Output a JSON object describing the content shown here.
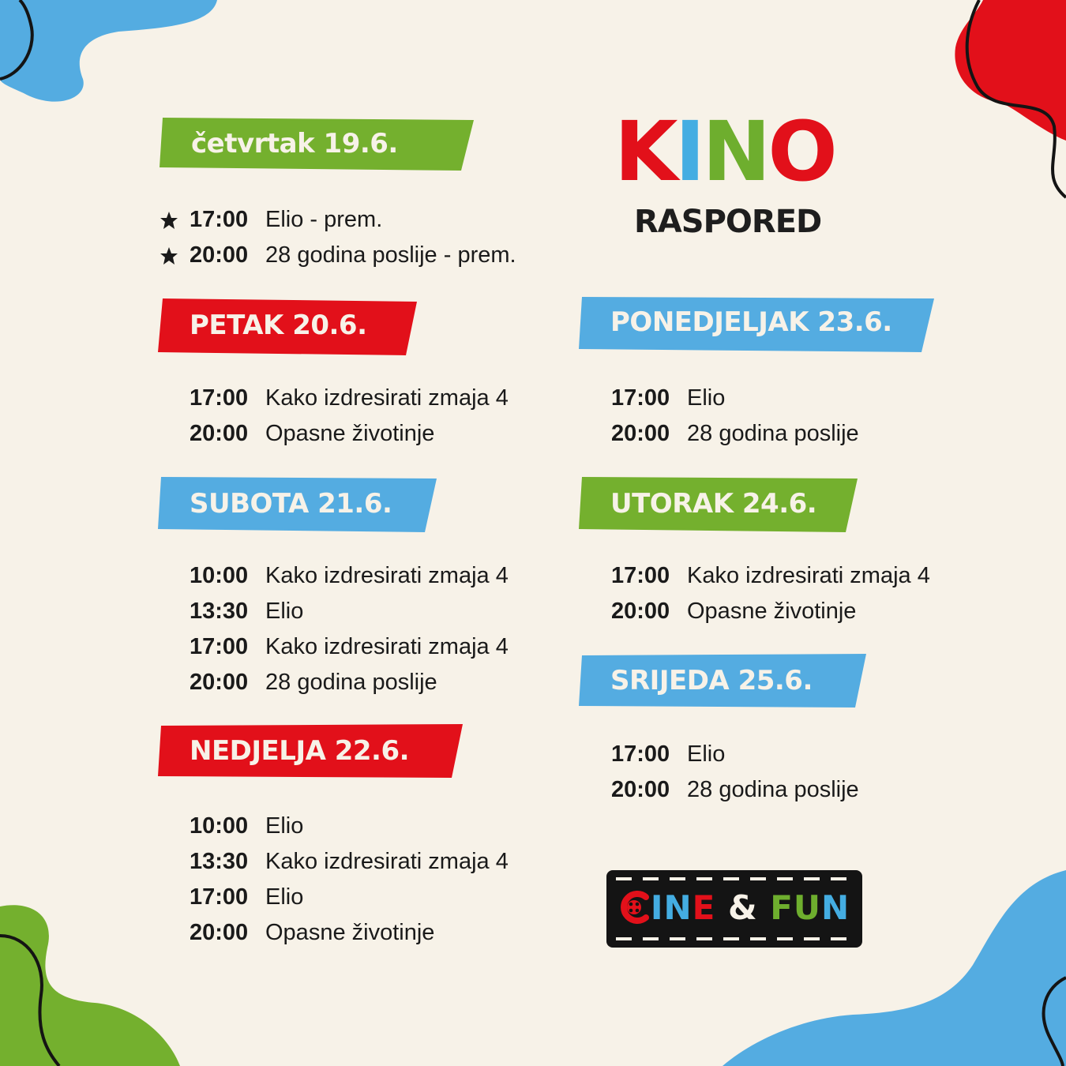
{
  "brand": {
    "title_letters": [
      {
        "char": "K",
        "color": "#e2101a"
      },
      {
        "char": "I",
        "color": "#44ade2"
      },
      {
        "char": "N",
        "color": "#6eae2e"
      },
      {
        "char": "O",
        "color": "#e2101a"
      }
    ],
    "subtitle": "RASPORED"
  },
  "colors": {
    "green": "#74b02e",
    "red": "#e2101a",
    "blue": "#54ace1",
    "cream": "#f7f2e8",
    "dark": "#141414"
  },
  "days": [
    {
      "label": "četvrtak 19.6.",
      "color": "green",
      "shows": [
        {
          "time": "17:00",
          "title": "Elio - prem.",
          "premiere": true,
          "icon": "star-icon"
        },
        {
          "time": "20:00",
          "title": "28 godina poslije - prem.",
          "premiere": true,
          "icon": "star-icon"
        }
      ]
    },
    {
      "label": "PETAK 20.6.",
      "color": "red",
      "shows": [
        {
          "time": "17:00",
          "title": "Kako izdresirati zmaja 4"
        },
        {
          "time": "20:00",
          "title": "Opasne životinje"
        }
      ]
    },
    {
      "label": "SUBOTA 21.6.",
      "color": "blue",
      "shows": [
        {
          "time": "10:00",
          "title": "Kako izdresirati zmaja 4"
        },
        {
          "time": "13:30",
          "title": "Elio"
        },
        {
          "time": "17:00",
          "title": "Kako izdresirati zmaja 4"
        },
        {
          "time": "20:00",
          "title": "28 godina poslije"
        }
      ]
    },
    {
      "label": "NEDJELJA 22.6.",
      "color": "red",
      "shows": [
        {
          "time": "10:00",
          "title": "Elio"
        },
        {
          "time": "13:30",
          "title": "Kako izdresirati zmaja 4"
        },
        {
          "time": "17:00",
          "title": "Elio"
        },
        {
          "time": "20:00",
          "title": "Opasne životinje"
        }
      ]
    },
    {
      "label": "PONEDJELJAK 23.6.",
      "color": "blue",
      "shows": [
        {
          "time": "17:00",
          "title": "Elio"
        },
        {
          "time": "20:00",
          "title": "28 godina poslije"
        }
      ]
    },
    {
      "label": "UTORAK 24.6.",
      "color": "green",
      "shows": [
        {
          "time": "17:00",
          "title": "Kako izdresirati zmaja 4"
        },
        {
          "time": "20:00",
          "title": "Opasne životinje"
        }
      ]
    },
    {
      "label": "SRIJEDA 25.6.",
      "color": "blue",
      "shows": [
        {
          "time": "17:00",
          "title": "Elio"
        },
        {
          "time": "20:00",
          "title": "28 godina poslije"
        }
      ]
    }
  ],
  "logo": {
    "parts": [
      {
        "text": "C",
        "color": "#e2101a",
        "icon": "film-reel-icon"
      },
      {
        "text": "IN",
        "color": "#44ade2"
      },
      {
        "text": "E",
        "color": "#e2101a"
      },
      {
        "text": " & ",
        "color": "#f7f2e8"
      },
      {
        "text": "FU",
        "color": "#6eae2e"
      },
      {
        "text": "N",
        "color": "#44ade2"
      }
    ]
  }
}
